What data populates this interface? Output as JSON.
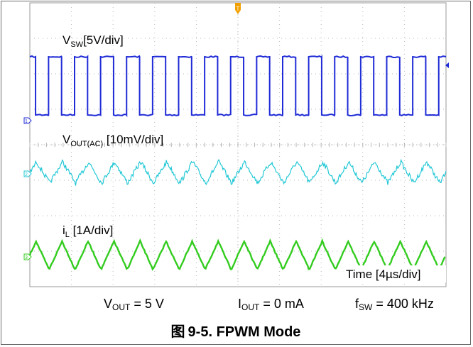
{
  "chart_data": {
    "type": "line",
    "title": "",
    "xlabel": "Time [4µs/div]",
    "ylabel": "",
    "grid": true,
    "x_divisions": 10,
    "y_divisions": 8,
    "x_unit": "µs",
    "x_range": [
      0,
      40
    ],
    "series": [
      {
        "name_main": "V",
        "name_sub": "SW",
        "scale": "[5V/div]",
        "color": "#1f2bd6",
        "marker": "1",
        "shape": "square",
        "low": 0,
        "high": 12.5,
        "period_us": 2.5,
        "duty": 0.5
      },
      {
        "name_main": "V",
        "name_sub": "OUT(AC)",
        "scale": " [10mV/div]",
        "color": "#22c8d6",
        "marker": "2",
        "shape": "triangle-ripple",
        "ripple_pp_mV": 13,
        "period_us": 2.5
      },
      {
        "name_main": "i",
        "name_sub": "L",
        "scale": " [1A/div]",
        "color": "#33cc1f",
        "marker": "3",
        "shape": "triangle",
        "ripple_pp_A": 1.05,
        "period_us": 2.5
      }
    ],
    "trigger_marker": "T"
  },
  "conditions": {
    "vout": {
      "main": "V",
      "sub": "OUT",
      "rest": " = 5 V"
    },
    "iout": {
      "main": "I",
      "sub": "OUT",
      "rest": " = 0 mA"
    },
    "fsw": {
      "main": "f",
      "sub": "SW",
      "rest": " = 400 kHz"
    }
  },
  "caption": {
    "prefix": "图",
    "text": "9-5. FPWM Mode"
  },
  "colors": {
    "grid": "#b8b8b8",
    "axis": "#9a9a9a",
    "trigger": "#f0a000"
  }
}
